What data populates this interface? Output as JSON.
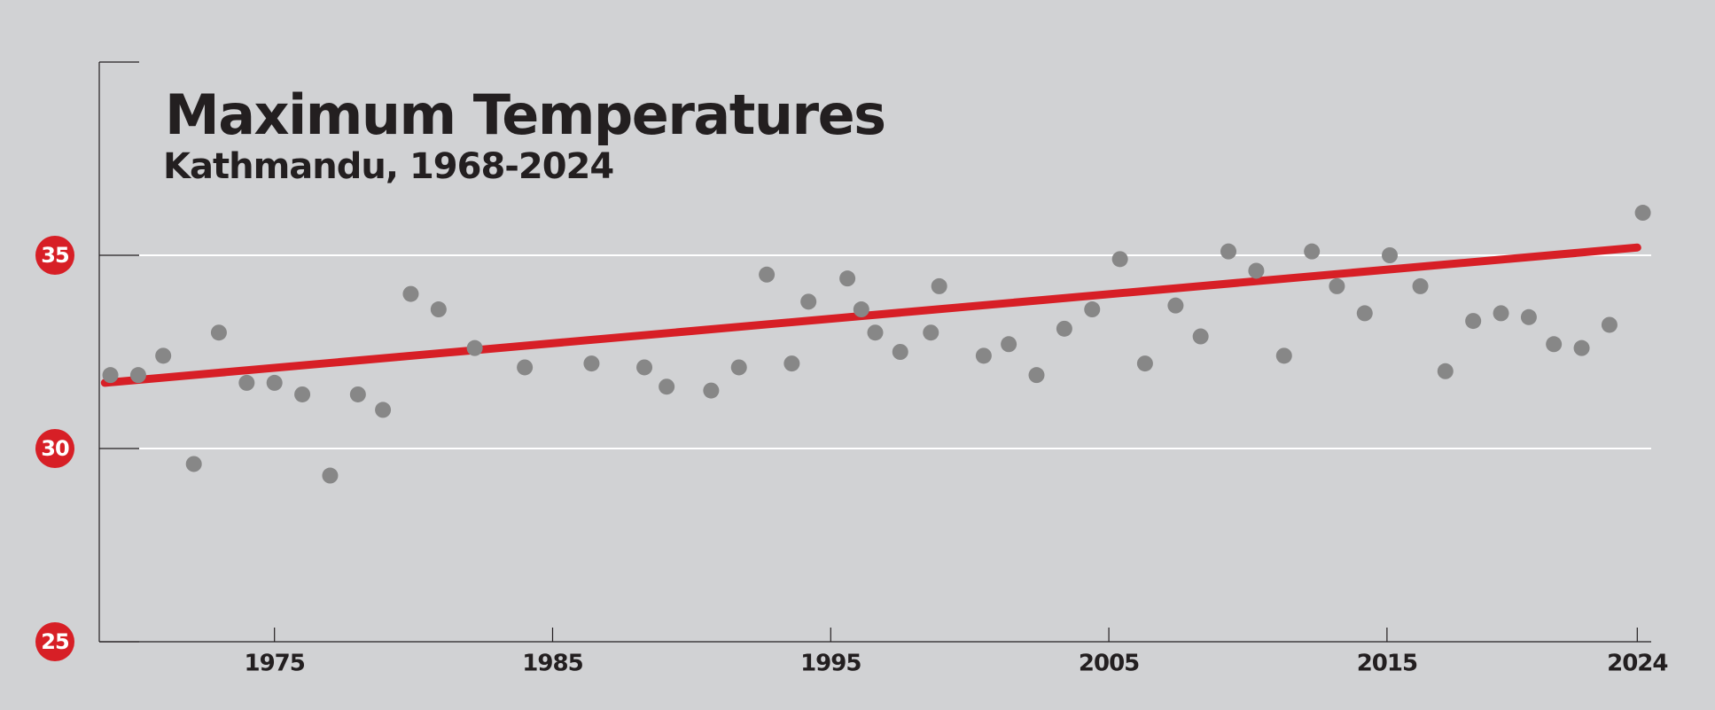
{
  "chart_data": {
    "type": "scatter",
    "title": "Maximum Temperatures",
    "subtitle": "Kathmandu, 1968-2024",
    "x": [
      1969.1,
      1970.1,
      1971.0,
      1972.1,
      1973.0,
      1974.0,
      1975.0,
      1976.0,
      1977.0,
      1978.0,
      1978.9,
      1979.9,
      1980.9,
      1982.2,
      1984.0,
      1986.4,
      1988.3,
      1989.1,
      1990.7,
      1991.7,
      1992.7,
      1993.6,
      1994.2,
      1995.6,
      1996.1,
      1996.6,
      1997.5,
      1998.6,
      1998.9,
      2000.5,
      2001.4,
      2002.4,
      2003.4,
      2004.4,
      2005.4,
      2006.3,
      2007.4,
      2008.3,
      2009.3,
      2010.3,
      2011.3,
      2012.3,
      2013.2,
      2014.2,
      2015.1,
      2016.2,
      2017.1,
      2018.1,
      2019.1,
      2020.1,
      2021.0,
      2022.0,
      2023.0,
      2024.2
    ],
    "values": [
      31.9,
      31.9,
      32.4,
      29.6,
      33.0,
      31.7,
      31.7,
      31.4,
      29.3,
      31.4,
      31.0,
      34.0,
      33.6,
      32.6,
      32.1,
      32.2,
      32.1,
      31.6,
      31.5,
      32.1,
      34.5,
      32.2,
      33.8,
      34.4,
      33.6,
      33.0,
      32.5,
      33.0,
      34.2,
      32.4,
      32.7,
      31.9,
      33.1,
      33.6,
      34.9,
      32.2,
      33.7,
      32.9,
      35.1,
      34.6,
      32.4,
      35.1,
      34.2,
      33.5,
      35.0,
      34.2,
      32.0,
      33.3,
      33.5,
      33.4,
      32.7,
      32.6,
      33.2,
      36.1
    ],
    "color": "#878787",
    "trend": {
      "x": [
        1968.9,
        2024.0
      ],
      "values": [
        31.7,
        35.2
      ],
      "color": "#d71f26"
    },
    "xlim": [
      1968.7,
      2024.5
    ],
    "xticks": [
      1975,
      1985,
      1995,
      2005,
      2015,
      2024
    ],
    "ylim": [
      25,
      40
    ],
    "yticks": [
      25,
      30,
      35
    ],
    "grid": true
  }
}
